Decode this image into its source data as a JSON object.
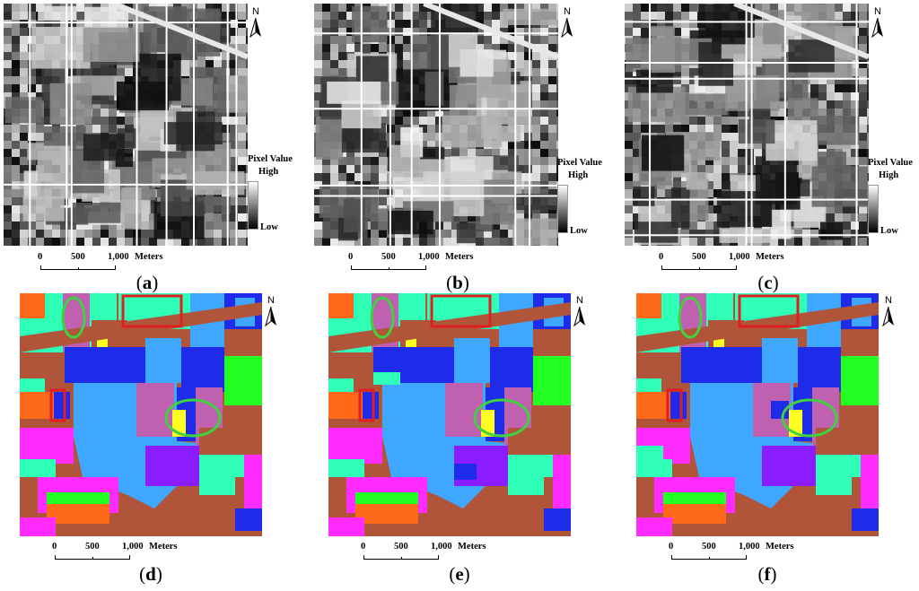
{
  "north_label": "N",
  "legend": {
    "title": "Pixel Value",
    "high": "High",
    "low": "Low"
  },
  "scale": {
    "ticks": [
      "0",
      "500",
      "1,000"
    ],
    "unit": "Meters"
  },
  "panels": [
    {
      "id": "a",
      "caption": "a",
      "type": "grayscale"
    },
    {
      "id": "b",
      "caption": "b",
      "type": "grayscale"
    },
    {
      "id": "c",
      "caption": "c",
      "type": "grayscale"
    },
    {
      "id": "d",
      "caption": "d",
      "type": "classification"
    },
    {
      "id": "e",
      "caption": "e",
      "type": "classification"
    },
    {
      "id": "f",
      "caption": "f",
      "type": "classification"
    }
  ],
  "colors": {
    "class_brown": "#b0553a",
    "class_blue": "#1e2be8",
    "class_lightblue": "#3fa7ff",
    "class_magenta": "#ff2bff",
    "class_aqua": "#30ffb8",
    "class_purple": "#8a1cff",
    "class_orange": "#ff6a1a",
    "class_green": "#22ff22",
    "class_yellow": "#ffff22",
    "class_mauve": "#c060b0",
    "marker_red": "#e02020",
    "marker_green": "#40d040"
  }
}
